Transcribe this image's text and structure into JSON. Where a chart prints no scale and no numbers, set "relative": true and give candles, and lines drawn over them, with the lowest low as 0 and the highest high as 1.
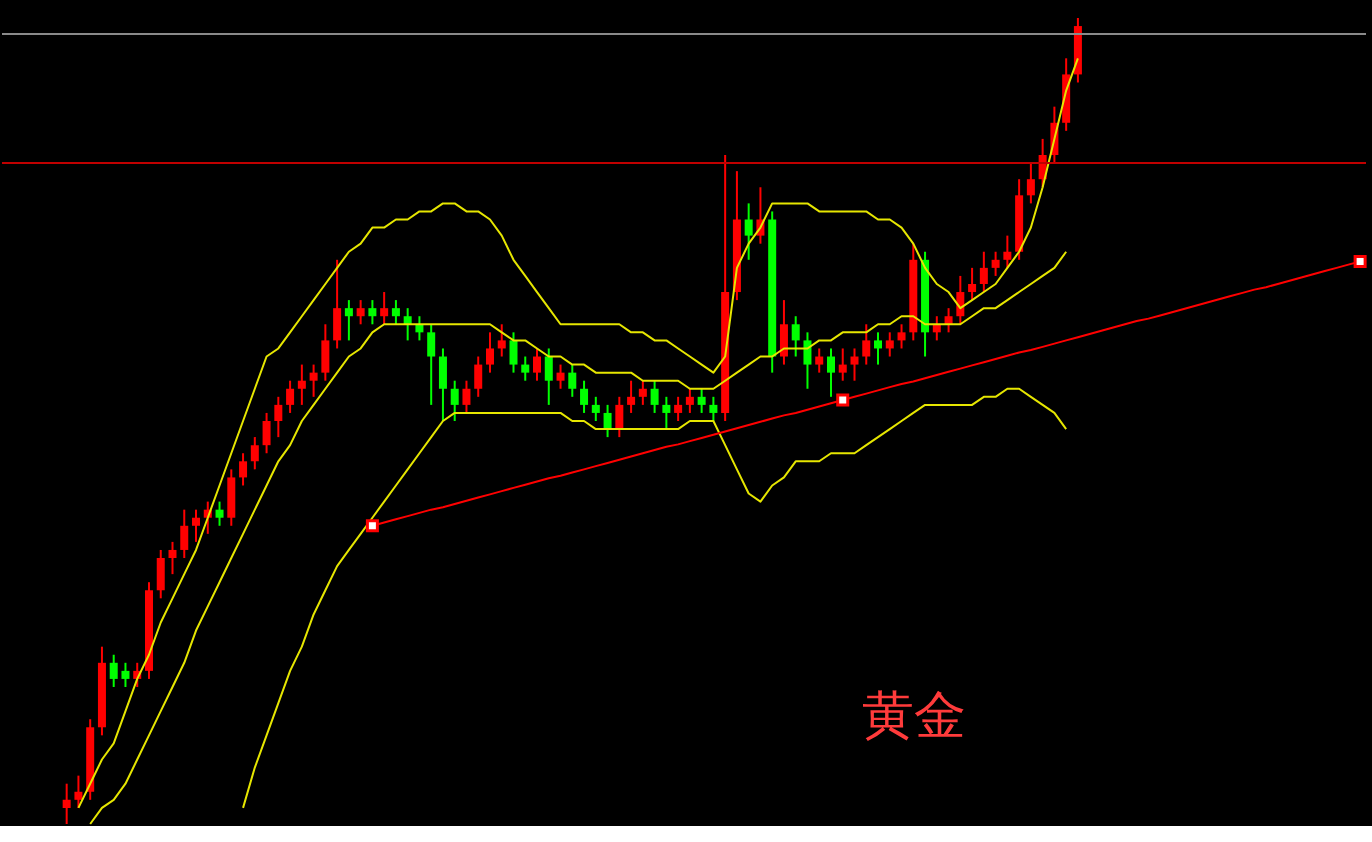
{
  "chart_data": {
    "type": "candlestick",
    "relative": true,
    "tick_labels": false,
    "categories": [
      null,
      null,
      null,
      null,
      null,
      null,
      null,
      null,
      null,
      null,
      null,
      null,
      null,
      null,
      null,
      null,
      null,
      null,
      null,
      null,
      null,
      null,
      null,
      null,
      null,
      null,
      null,
      null,
      null,
      null,
      null,
      null,
      null,
      null,
      null,
      null,
      null,
      null,
      null,
      null,
      null,
      null,
      null,
      null,
      null,
      null,
      null,
      null,
      null,
      null,
      null,
      null,
      null,
      null,
      null,
      null,
      null,
      null,
      null,
      null,
      null,
      null,
      null,
      null,
      null,
      null,
      null,
      null,
      null,
      null,
      null,
      null,
      null,
      null,
      null,
      null,
      null,
      null,
      null,
      null,
      null,
      null,
      null,
      null,
      null,
      null,
      null,
      null,
      null,
      null,
      null,
      null,
      null,
      null,
      null,
      null,
      null,
      null,
      null,
      null,
      null,
      null,
      null,
      null,
      null,
      null,
      null,
      null,
      null,
      null,
      null,
      null,
      null,
      null,
      null,
      null
    ],
    "ohlc": [
      null,
      null,
      null,
      null,
      null,
      [
        0.02,
        0.05,
        0.0,
        0.03
      ],
      [
        0.03,
        0.06,
        0.02,
        0.04
      ],
      [
        0.04,
        0.13,
        0.03,
        0.12
      ],
      [
        0.12,
        0.22,
        0.11,
        0.2
      ],
      [
        0.2,
        0.21,
        0.17,
        0.18
      ],
      [
        0.19,
        0.2,
        0.17,
        0.18
      ],
      [
        0.18,
        0.2,
        0.17,
        0.19
      ],
      [
        0.19,
        0.3,
        0.18,
        0.29
      ],
      [
        0.29,
        0.34,
        0.28,
        0.33
      ],
      [
        0.33,
        0.35,
        0.31,
        0.34
      ],
      [
        0.34,
        0.39,
        0.33,
        0.37
      ],
      [
        0.37,
        0.39,
        0.35,
        0.38
      ],
      [
        0.38,
        0.4,
        0.36,
        0.39
      ],
      [
        0.39,
        0.4,
        0.37,
        0.38
      ],
      [
        0.38,
        0.44,
        0.37,
        0.43
      ],
      [
        0.43,
        0.46,
        0.42,
        0.45
      ],
      [
        0.45,
        0.48,
        0.44,
        0.47
      ],
      [
        0.47,
        0.51,
        0.46,
        0.5
      ],
      [
        0.5,
        0.53,
        0.48,
        0.52
      ],
      [
        0.52,
        0.55,
        0.51,
        0.54
      ],
      [
        0.54,
        0.57,
        0.52,
        0.55
      ],
      [
        0.55,
        0.57,
        0.53,
        0.56
      ],
      [
        0.56,
        0.62,
        0.55,
        0.6
      ],
      [
        0.6,
        0.7,
        0.59,
        0.64
      ],
      [
        0.64,
        0.65,
        0.6,
        0.63
      ],
      [
        0.63,
        0.65,
        0.62,
        0.64
      ],
      [
        0.64,
        0.65,
        0.62,
        0.63
      ],
      [
        0.63,
        0.66,
        0.62,
        0.64
      ],
      [
        0.64,
        0.65,
        0.62,
        0.63
      ],
      [
        0.63,
        0.64,
        0.6,
        0.62
      ],
      [
        0.62,
        0.63,
        0.6,
        0.61
      ],
      [
        0.61,
        0.62,
        0.52,
        0.58
      ],
      [
        0.58,
        0.59,
        0.5,
        0.54
      ],
      [
        0.54,
        0.55,
        0.5,
        0.52
      ],
      [
        0.52,
        0.55,
        0.51,
        0.54
      ],
      [
        0.54,
        0.58,
        0.53,
        0.57
      ],
      [
        0.57,
        0.61,
        0.56,
        0.59
      ],
      [
        0.59,
        0.62,
        0.58,
        0.6
      ],
      [
        0.6,
        0.61,
        0.56,
        0.57
      ],
      [
        0.57,
        0.58,
        0.55,
        0.56
      ],
      [
        0.56,
        0.59,
        0.55,
        0.58
      ],
      [
        0.58,
        0.59,
        0.52,
        0.55
      ],
      [
        0.55,
        0.57,
        0.54,
        0.56
      ],
      [
        0.56,
        0.57,
        0.53,
        0.54
      ],
      [
        0.54,
        0.55,
        0.51,
        0.52
      ],
      [
        0.52,
        0.53,
        0.5,
        0.51
      ],
      [
        0.51,
        0.52,
        0.48,
        0.49
      ],
      [
        0.49,
        0.53,
        0.48,
        0.52
      ],
      [
        0.52,
        0.55,
        0.51,
        0.53
      ],
      [
        0.53,
        0.55,
        0.52,
        0.54
      ],
      [
        0.54,
        0.55,
        0.51,
        0.52
      ],
      [
        0.52,
        0.53,
        0.49,
        0.51
      ],
      [
        0.51,
        0.53,
        0.5,
        0.52
      ],
      [
        0.52,
        0.54,
        0.51,
        0.53
      ],
      [
        0.53,
        0.54,
        0.51,
        0.52
      ],
      [
        0.52,
        0.53,
        0.5,
        0.51
      ],
      [
        0.51,
        0.83,
        0.5,
        0.66
      ],
      [
        0.66,
        0.81,
        0.65,
        0.75
      ],
      [
        0.75,
        0.77,
        0.7,
        0.73
      ],
      [
        0.73,
        0.79,
        0.72,
        0.75
      ],
      [
        0.75,
        0.76,
        0.56,
        0.58
      ],
      [
        0.58,
        0.65,
        0.57,
        0.62
      ],
      [
        0.62,
        0.63,
        0.58,
        0.6
      ],
      [
        0.6,
        0.61,
        0.54,
        0.57
      ],
      [
        0.57,
        0.59,
        0.56,
        0.58
      ],
      [
        0.58,
        0.59,
        0.53,
        0.56
      ],
      [
        0.56,
        0.59,
        0.55,
        0.57
      ],
      [
        0.57,
        0.59,
        0.55,
        0.58
      ],
      [
        0.58,
        0.62,
        0.57,
        0.6
      ],
      [
        0.6,
        0.61,
        0.57,
        0.59
      ],
      [
        0.59,
        0.61,
        0.58,
        0.6
      ],
      [
        0.6,
        0.62,
        0.59,
        0.61
      ],
      [
        0.61,
        0.72,
        0.6,
        0.7
      ],
      [
        0.7,
        0.71,
        0.58,
        0.61
      ],
      [
        0.61,
        0.63,
        0.6,
        0.62
      ],
      [
        0.62,
        0.64,
        0.61,
        0.63
      ],
      [
        0.63,
        0.68,
        0.62,
        0.66
      ],
      [
        0.66,
        0.69,
        0.65,
        0.67
      ],
      [
        0.67,
        0.71,
        0.66,
        0.69
      ],
      [
        0.69,
        0.71,
        0.68,
        0.7
      ],
      [
        0.7,
        0.73,
        0.69,
        0.71
      ],
      [
        0.71,
        0.8,
        0.7,
        0.78
      ],
      [
        0.78,
        0.82,
        0.77,
        0.8
      ],
      [
        0.8,
        0.85,
        0.79,
        0.83
      ],
      [
        0.83,
        0.89,
        0.82,
        0.87
      ],
      [
        0.87,
        0.95,
        0.86,
        0.93
      ],
      [
        0.93,
        1.0,
        0.92,
        0.99
      ],
      null,
      null,
      null,
      null,
      null,
      null,
      null,
      null,
      null,
      null,
      null,
      null,
      null,
      null,
      null,
      null,
      null,
      null,
      null,
      null,
      null,
      null,
      null,
      null
    ],
    "colors": [
      null,
      null,
      null,
      null,
      null,
      "#ff0000",
      "#ff0000",
      "#ff0000",
      "#ff0000",
      "#00ff00",
      "#00ff00",
      "#ff0000",
      "#ff0000",
      "#ff0000",
      "#ff0000",
      "#ff0000",
      "#ff0000",
      "#ff0000",
      "#00ff00",
      "#ff0000",
      "#ff0000",
      "#ff0000",
      "#ff0000",
      "#ff0000",
      "#ff0000",
      "#ff0000",
      "#ff0000",
      "#ff0000",
      "#ff0000",
      "#00ff00",
      "#ff0000",
      "#00ff00",
      "#ff0000",
      "#00ff00",
      "#00ff00",
      "#00ff00",
      "#00ff00",
      "#00ff00",
      "#00ff00",
      "#ff0000",
      "#ff0000",
      "#ff0000",
      "#ff0000",
      "#00ff00",
      "#00ff00",
      "#ff0000",
      "#00ff00",
      "#ff0000",
      "#00ff00",
      "#00ff00",
      "#00ff00",
      "#00ff00",
      "#ff0000",
      "#ff0000",
      "#ff0000",
      "#00ff00",
      "#00ff00",
      "#ff0000",
      "#ff0000",
      "#00ff00",
      "#00ff00",
      "#ff0000",
      "#ff0000",
      "#00ff00",
      "#ff0000",
      "#00ff00",
      "#ff0000",
      "#00ff00",
      "#00ff00",
      "#ff0000",
      "#00ff00",
      "#ff0000",
      "#ff0000",
      "#ff0000",
      "#00ff00",
      "#ff0000",
      "#ff0000",
      "#ff0000",
      "#00ff00",
      "#ff0000",
      "#ff0000",
      "#ff0000",
      "#ff0000",
      "#ff0000",
      "#ff0000",
      "#ff0000",
      "#ff0000",
      "#ff0000",
      "#ff0000",
      "#ff0000",
      "#ff0000",
      "#ff0000",
      null,
      null,
      null,
      null,
      null,
      null,
      null,
      null,
      null,
      null,
      null,
      null,
      null,
      null,
      null,
      null,
      null,
      null,
      null,
      null,
      null,
      null,
      null,
      null
    ],
    "series": [
      {
        "type": "line",
        "color": "#e6e600",
        "values": [
          null,
          null,
          null,
          null,
          null,
          null,
          0.02,
          0.05,
          0.08,
          0.1,
          0.14,
          0.18,
          0.21,
          0.25,
          0.28,
          0.31,
          0.34,
          0.38,
          0.42,
          0.46,
          0.5,
          0.54,
          0.58,
          0.59,
          0.61,
          0.63,
          0.65,
          0.67,
          0.69,
          0.71,
          0.72,
          0.74,
          0.74,
          0.75,
          0.75,
          0.76,
          0.76,
          0.77,
          0.77,
          0.76,
          0.76,
          0.75,
          0.73,
          0.7,
          0.68,
          0.66,
          0.64,
          0.62,
          0.62,
          0.62,
          0.62,
          0.62,
          0.62,
          0.61,
          0.61,
          0.6,
          0.6,
          0.59,
          0.58,
          0.57,
          0.56,
          0.58,
          0.69,
          0.72,
          0.74,
          0.77,
          0.77,
          0.77,
          0.77,
          0.76,
          0.76,
          0.76,
          0.76,
          0.76,
          0.75,
          0.75,
          0.74,
          0.72,
          0.69,
          0.67,
          0.66,
          0.64,
          0.65,
          0.66,
          0.67,
          0.69,
          0.71,
          0.74,
          0.79,
          0.85,
          0.91,
          0.95,
          null,
          null,
          null,
          null,
          null,
          null,
          null,
          null,
          null,
          null,
          null,
          null,
          null,
          null,
          null,
          null,
          null,
          null,
          null,
          null,
          null,
          null,
          null,
          null
        ]
      },
      {
        "type": "line",
        "color": "#e6e600",
        "values": [
          null,
          null,
          null,
          null,
          null,
          null,
          null,
          0.0,
          0.02,
          0.03,
          0.05,
          0.08,
          0.11,
          0.14,
          0.17,
          0.2,
          0.24,
          0.27,
          0.3,
          0.33,
          0.36,
          0.39,
          0.42,
          0.45,
          0.47,
          0.5,
          0.52,
          0.54,
          0.56,
          0.58,
          0.59,
          0.61,
          0.62,
          0.62,
          0.62,
          0.62,
          0.62,
          0.62,
          0.62,
          0.62,
          0.62,
          0.62,
          0.61,
          0.6,
          0.6,
          0.59,
          0.58,
          0.58,
          0.57,
          0.57,
          0.56,
          0.56,
          0.56,
          0.56,
          0.55,
          0.55,
          0.55,
          0.55,
          0.54,
          0.54,
          0.54,
          0.55,
          0.56,
          0.57,
          0.58,
          0.58,
          0.59,
          0.59,
          0.59,
          0.6,
          0.6,
          0.61,
          0.61,
          0.61,
          0.62,
          0.62,
          0.63,
          0.63,
          0.62,
          0.62,
          0.62,
          0.62,
          0.63,
          0.64,
          0.64,
          0.65,
          0.66,
          0.67,
          0.68,
          0.69,
          0.71,
          null,
          null,
          null,
          null,
          null,
          null,
          null,
          null,
          null,
          null,
          null,
          null,
          null,
          null,
          null,
          null,
          null,
          null,
          null,
          null,
          null,
          null,
          null,
          null,
          null
        ]
      },
      {
        "type": "line",
        "color": "#e6e600",
        "values": [
          null,
          null,
          null,
          null,
          null,
          null,
          null,
          null,
          null,
          null,
          null,
          null,
          null,
          null,
          null,
          null,
          null,
          null,
          null,
          null,
          0.02,
          0.07,
          0.11,
          0.15,
          0.19,
          0.22,
          0.26,
          0.29,
          0.32,
          0.34,
          0.36,
          0.38,
          0.4,
          0.42,
          0.44,
          0.46,
          0.48,
          0.5,
          0.51,
          0.51,
          0.51,
          0.51,
          0.51,
          0.51,
          0.51,
          0.51,
          0.51,
          0.51,
          0.5,
          0.5,
          0.49,
          0.49,
          0.49,
          0.49,
          0.49,
          0.49,
          0.49,
          0.49,
          0.5,
          0.5,
          0.5,
          0.47,
          0.44,
          0.41,
          0.4,
          0.42,
          0.43,
          0.45,
          0.45,
          0.45,
          0.46,
          0.46,
          0.46,
          0.47,
          0.48,
          0.49,
          0.5,
          0.51,
          0.52,
          0.52,
          0.52,
          0.52,
          0.52,
          0.53,
          0.53,
          0.54,
          0.54,
          0.53,
          0.52,
          0.51,
          0.49,
          null,
          null,
          null,
          null,
          null,
          null,
          null,
          null,
          null,
          null,
          null,
          null,
          null,
          null,
          null,
          null,
          null,
          null,
          null,
          null,
          null,
          null,
          null,
          null,
          null
        ]
      },
      {
        "type": "line",
        "color": "#ff0000",
        "values": [
          null,
          null,
          null,
          null,
          null,
          null,
          null,
          null,
          null,
          null,
          null,
          null,
          null,
          null,
          null,
          null,
          null,
          null,
          null,
          null,
          null,
          null,
          null,
          null,
          null,
          null,
          null,
          null,
          null,
          null,
          null,
          0.37,
          0.374,
          0.378,
          0.382,
          0.386,
          0.39,
          0.393,
          0.397,
          0.401,
          0.405,
          0.409,
          0.413,
          0.417,
          0.421,
          0.425,
          0.429,
          0.432,
          0.436,
          0.44,
          0.444,
          0.448,
          0.452,
          0.456,
          0.46,
          0.464,
          0.468,
          0.471,
          0.475,
          0.479,
          0.483,
          0.487,
          0.491,
          0.495,
          0.499,
          0.503,
          0.507,
          0.51,
          0.514,
          0.518,
          0.522,
          0.526,
          0.53,
          0.534,
          0.538,
          0.542,
          0.546,
          0.549,
          0.553,
          0.557,
          0.561,
          0.565,
          0.569,
          0.573,
          0.577,
          0.581,
          0.585,
          0.588,
          0.592,
          0.596,
          0.6,
          0.604,
          0.608,
          0.612,
          0.616,
          0.62,
          0.624,
          0.627,
          0.631,
          0.635,
          0.639,
          0.643,
          0.647,
          0.651,
          0.655,
          0.659,
          0.663,
          0.666,
          0.67,
          0.674,
          0.678,
          0.682,
          0.686,
          0.69,
          0.694,
          0.698
        ]
      },
      {
        "type": "scatter",
        "color": "#ff0000",
        "marker": "square",
        "values": [
          null,
          null,
          null,
          null,
          null,
          null,
          null,
          null,
          null,
          null,
          null,
          null,
          null,
          null,
          null,
          null,
          null,
          null,
          null,
          null,
          null,
          null,
          null,
          null,
          null,
          null,
          null,
          null,
          null,
          null,
          null,
          0.37,
          null,
          null,
          null,
          null,
          null,
          null,
          null,
          null,
          null,
          null,
          null,
          null,
          null,
          null,
          null,
          null,
          null,
          null,
          null,
          null,
          null,
          null,
          null,
          null,
          null,
          null,
          null,
          null,
          null,
          null,
          null,
          null,
          null,
          null,
          null,
          null,
          null,
          null,
          null,
          0.526,
          null,
          null,
          null,
          null,
          null,
          null,
          null,
          null,
          null,
          null,
          null,
          null,
          null,
          null,
          null,
          null,
          null,
          null,
          null,
          null,
          null,
          null,
          null,
          null,
          null,
          null,
          null,
          null,
          null,
          null,
          null,
          null,
          null,
          null,
          null,
          null,
          null,
          null,
          null,
          null,
          null,
          null,
          null,
          0.698
        ]
      }
    ],
    "ref_lines": [
      {
        "axis": "y",
        "value": 0.98,
        "color": "#8a8a8a"
      },
      {
        "axis": "y",
        "value": 0.82,
        "color": "#c00000"
      }
    ],
    "annotations": [
      "黄金"
    ]
  }
}
